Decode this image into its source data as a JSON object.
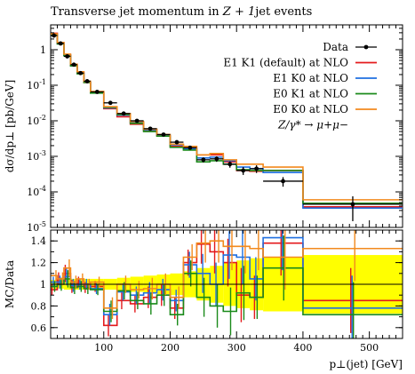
{
  "chart_data": [
    {
      "type": "line",
      "panel": "main",
      "title": "Transverse jet momentum in Z + 1jet events",
      "ylabel": "dσ/dp⊥ [pb/GeV]",
      "yscale": "log",
      "ylim": [
        1e-05,
        5
      ],
      "yticks": [
        "10^{-5}",
        "10^{-4}",
        "10^{-3}",
        "10^{-2}",
        "10^{-1}",
        "1"
      ],
      "process_label": "Z/γ* → μ+μ−",
      "bin_edges": [
        20,
        30,
        40,
        50,
        60,
        70,
        80,
        100,
        120,
        140,
        160,
        180,
        200,
        220,
        240,
        260,
        280,
        300,
        320,
        340,
        400,
        550
      ],
      "series": [
        {
          "name": "Data",
          "style": "points",
          "color": "#000000",
          "values": [
            2.5,
            1.5,
            0.65,
            0.38,
            0.22,
            0.13,
            0.065,
            0.032,
            0.016,
            0.01,
            0.006,
            0.0041,
            0.0025,
            0.00175,
            0.0008,
            0.00085,
            0.0006,
            0.0004,
            0.00045,
            0.0002,
            4.5e-05
          ],
          "errors": [
            0.1,
            0.06,
            0.03,
            0.02,
            0.012,
            0.007,
            0.004,
            0.002,
            0.0012,
            0.0009,
            0.0006,
            0.0004,
            0.0003,
            0.0002,
            0.00013,
            0.00015,
            0.00012,
            0.0001,
            0.00011,
            6e-05,
            3e-05
          ]
        },
        {
          "name": "E1 K1 (default) at NLO",
          "color": "#e41a1c",
          "values": [
            2.9,
            1.55,
            0.72,
            0.36,
            0.23,
            0.12,
            0.063,
            0.022,
            0.013,
            0.008,
            0.0052,
            0.0038,
            0.0019,
            0.0017,
            0.0011,
            0.0011,
            0.0007,
            0.0004,
            0.00038,
            0.0004,
            3.8e-05
          ]
        },
        {
          "name": "E1 K0 at NLO",
          "color": "#1f6fe0",
          "values": [
            2.7,
            1.5,
            0.7,
            0.37,
            0.22,
            0.125,
            0.062,
            0.023,
            0.0145,
            0.009,
            0.0055,
            0.0039,
            0.0021,
            0.0016,
            0.0009,
            0.00095,
            0.00075,
            0.0005,
            0.00045,
            0.00035,
            3.5e-05
          ]
        },
        {
          "name": "E0 K1 at NLO",
          "color": "#1a8a1a",
          "values": [
            2.6,
            1.45,
            0.68,
            0.35,
            0.21,
            0.12,
            0.06,
            0.024,
            0.015,
            0.0085,
            0.005,
            0.0037,
            0.0018,
            0.0015,
            0.0007,
            0.00075,
            0.0006,
            0.00042,
            0.0004,
            0.0004,
            4.8e-05
          ]
        },
        {
          "name": "E0 K0 at NLO",
          "color": "#f28a1e",
          "values": [
            2.8,
            1.6,
            0.75,
            0.39,
            0.24,
            0.13,
            0.067,
            0.025,
            0.016,
            0.0095,
            0.0058,
            0.0041,
            0.0022,
            0.0019,
            0.0011,
            0.0012,
            0.0008,
            0.0006,
            0.0006,
            0.0005,
            6e-05
          ]
        }
      ]
    },
    {
      "type": "line",
      "panel": "ratio",
      "ylabel": "MC/Data",
      "xlabel": "p⊥(jet) [GeV]",
      "xlim": [
        20,
        550
      ],
      "xticks": [
        100,
        200,
        300,
        400,
        500
      ],
      "ylim": [
        0.5,
        1.5
      ],
      "yticks": [
        0.6,
        0.8,
        1,
        1.2,
        1.4
      ],
      "data_band_color": "#ffff00",
      "bin_edges": [
        20,
        30,
        40,
        50,
        60,
        70,
        80,
        100,
        120,
        140,
        160,
        180,
        200,
        220,
        240,
        260,
        280,
        300,
        320,
        340,
        400,
        550
      ],
      "band_halfwidth": [
        0.04,
        0.04,
        0.05,
        0.05,
        0.05,
        0.05,
        0.05,
        0.05,
        0.06,
        0.07,
        0.08,
        0.09,
        0.1,
        0.12,
        0.15,
        0.17,
        0.2,
        0.22,
        0.24,
        0.25,
        0.27
      ],
      "series": [
        {
          "name": "E1 K1 (default) at NLO",
          "color": "#e41a1c",
          "values": [
            0.95,
            1.05,
            1.1,
            0.98,
            1.02,
            0.97,
            0.98,
            0.62,
            0.85,
            0.82,
            0.88,
            0.9,
            0.78,
            1.2,
            1.37,
            1.3,
            1.2,
            0.9,
            0.88,
            1.38,
            0.85
          ],
          "errors": [
            0.05,
            0.06,
            0.08,
            0.06,
            0.05,
            0.05,
            0.05,
            0.1,
            0.08,
            0.08,
            0.1,
            0.1,
            0.1,
            0.12,
            0.18,
            0.2,
            0.22,
            0.25,
            0.2,
            0.3,
            0.3
          ]
        },
        {
          "name": "E1 K0 at NLO",
          "color": "#1f6fe0",
          "values": [
            1.02,
            1.02,
            1.07,
            0.99,
            1.0,
            1.0,
            0.96,
            0.72,
            0.93,
            0.9,
            0.92,
            0.95,
            0.85,
            1.18,
            1.1,
            1.0,
            1.27,
            1.25,
            1.05,
            1.43,
            0.78
          ],
          "errors": [
            0.05,
            0.06,
            0.08,
            0.06,
            0.05,
            0.05,
            0.05,
            0.1,
            0.08,
            0.08,
            0.1,
            0.1,
            0.1,
            0.12,
            0.18,
            0.2,
            0.22,
            0.25,
            0.2,
            0.3,
            0.3
          ]
        },
        {
          "name": "E0 K1 at NLO",
          "color": "#1a8a1a",
          "values": [
            0.98,
            1.0,
            1.05,
            0.97,
            0.98,
            0.96,
            0.95,
            0.75,
            0.94,
            0.85,
            0.82,
            0.9,
            0.72,
            1.1,
            0.88,
            0.8,
            0.75,
            0.92,
            0.88,
            1.15,
            0.72
          ],
          "errors": [
            0.05,
            0.06,
            0.08,
            0.06,
            0.05,
            0.05,
            0.05,
            0.1,
            0.08,
            0.08,
            0.1,
            0.1,
            0.1,
            0.12,
            0.18,
            0.2,
            0.22,
            0.25,
            0.2,
            0.3,
            0.3
          ]
        },
        {
          "name": "E0 K0 at NLO",
          "color": "#f28a1e",
          "values": [
            1.08,
            1.05,
            1.15,
            1.02,
            1.05,
            1.0,
            1.02,
            0.78,
            1.0,
            0.95,
            0.96,
            1.0,
            0.88,
            1.25,
            1.38,
            1.4,
            1.35,
            1.35,
            1.33,
            1.25,
            1.33
          ],
          "errors": [
            0.05,
            0.06,
            0.08,
            0.06,
            0.05,
            0.05,
            0.05,
            0.1,
            0.08,
            0.08,
            0.1,
            0.1,
            0.1,
            0.12,
            0.18,
            0.2,
            0.22,
            0.25,
            0.2,
            0.3,
            0.3
          ]
        }
      ]
    }
  ]
}
